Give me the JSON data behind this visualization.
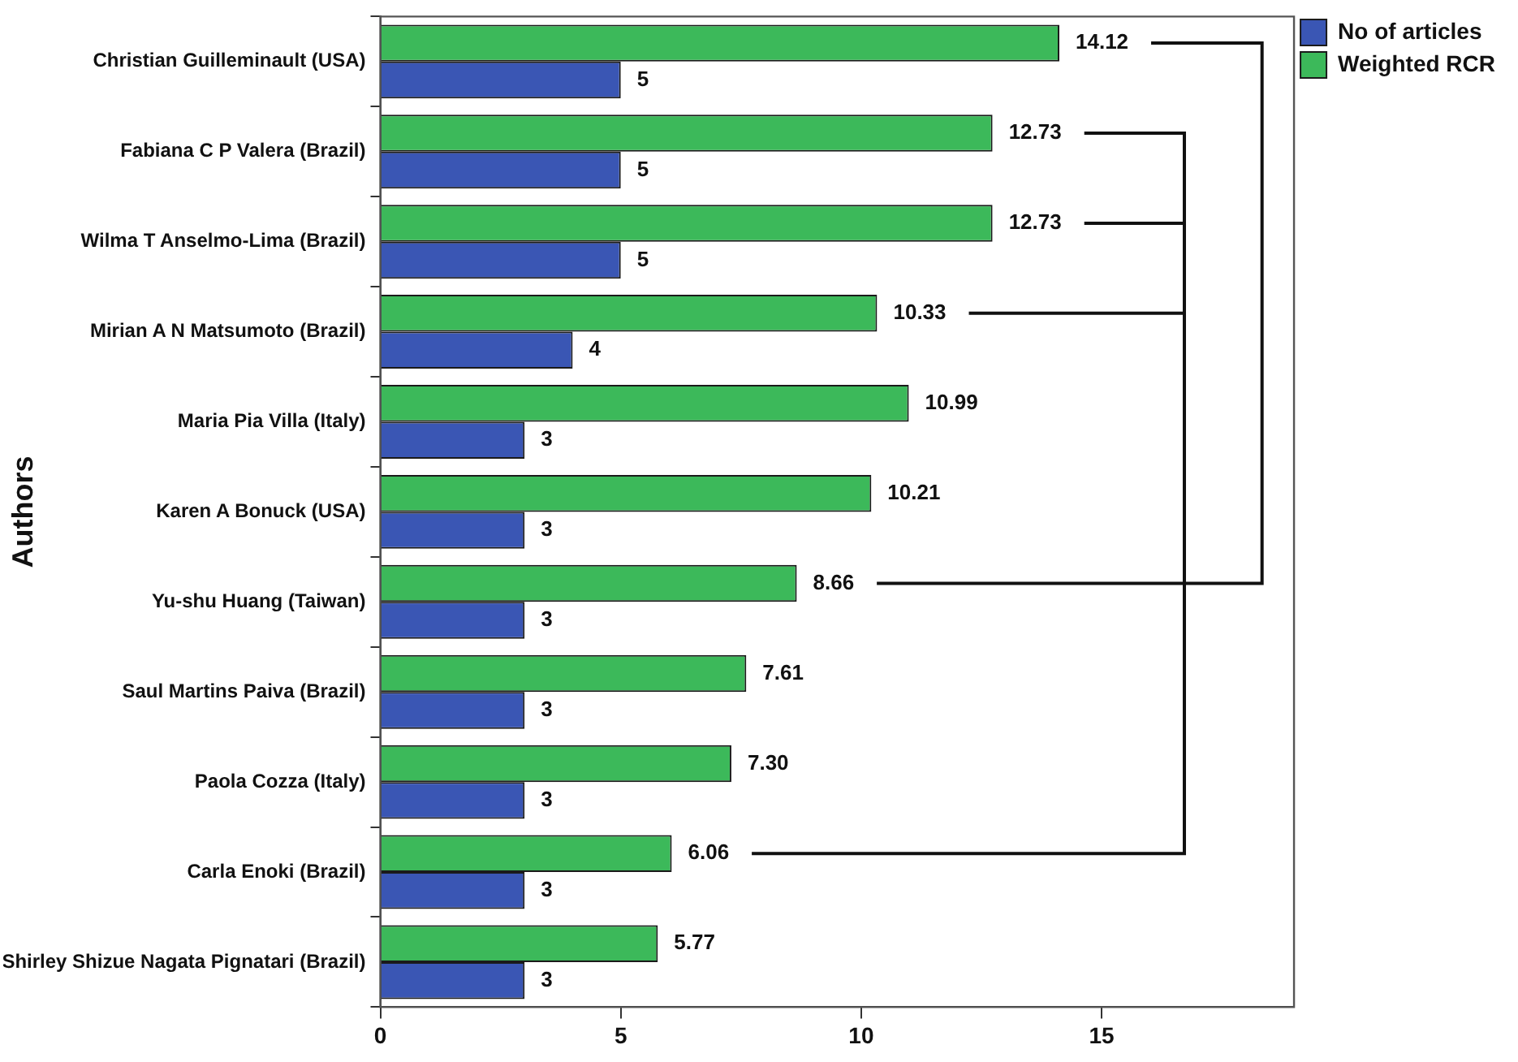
{
  "chart_data": {
    "type": "bar",
    "orientation": "horizontal",
    "ylabel": "Authors",
    "categories": [
      "Christian Guilleminault (USA)",
      "Fabiana C P Valera (Brazil)",
      "Wilma T Anselmo-Lima (Brazil)",
      "Mirian A N Matsumoto (Brazil)",
      "Maria Pia Villa (Italy)",
      "Karen A Bonuck (USA)",
      "Yu-shu Huang (Taiwan)",
      "Saul Martins Paiva (Brazil)",
      "Paola Cozza (Italy)",
      "Carla Enoki (Brazil)",
      "Shirley Shizue Nagata Pignatari (Brazil)"
    ],
    "series": [
      {
        "name": "Weighted RCR",
        "color": "#3cb95a",
        "values": [
          14.12,
          12.73,
          12.73,
          10.33,
          10.99,
          10.21,
          8.66,
          7.61,
          7.3,
          6.06,
          5.77
        ],
        "value_labels": [
          "14.12",
          "12.73",
          "12.73",
          "10.33",
          "10.99",
          "10.21",
          "8.66",
          "7.61",
          "7.30",
          "6.06",
          "5.77"
        ]
      },
      {
        "name": "No of articles",
        "color": "#3a56b4",
        "values": [
          5,
          5,
          5,
          4,
          3,
          3,
          3,
          3,
          3,
          3,
          3
        ],
        "value_labels": [
          "5",
          "5",
          "5",
          "4",
          "3",
          "3",
          "3",
          "3",
          "3",
          "3",
          "3"
        ]
      }
    ],
    "xlim": [
      0,
      19
    ],
    "xticks": [
      0,
      5,
      10,
      15
    ],
    "grid": false,
    "legend": "top right"
  }
}
